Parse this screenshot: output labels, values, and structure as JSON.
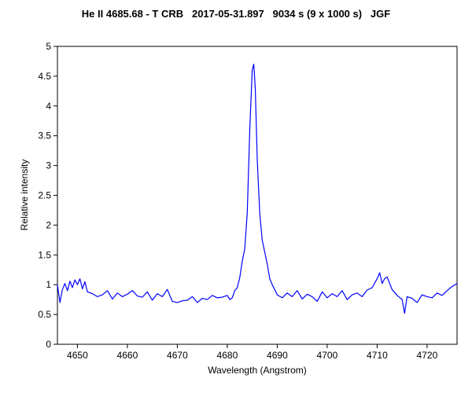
{
  "chart_data": {
    "type": "line",
    "title": "He II 4685.68 - T CRB   2017-05-31.897   9034 s (9 x 1000 s)   JGF",
    "xlabel": "Wavelength (Angstrom)",
    "ylabel": "Relative intensity",
    "xlim": [
      4646,
      4726
    ],
    "ylim": [
      0,
      5
    ],
    "xticks": [
      4650,
      4660,
      4670,
      4680,
      4690,
      4700,
      4710,
      4720
    ],
    "yticks": [
      0,
      0.5,
      1,
      1.5,
      2,
      2.5,
      3,
      3.5,
      4,
      4.5,
      5
    ],
    "ytick_labels": [
      "0",
      "0.5",
      "1",
      "1.5",
      "2",
      "2.5",
      "3",
      "3.5",
      "4",
      "4.5",
      "5"
    ],
    "grid": false,
    "line_color": "#0000ff",
    "series": [
      {
        "x": [
          4646,
          4646.5,
          4647,
          4647.5,
          4648,
          4648.5,
          4649,
          4649.5,
          4650,
          4650.5,
          4651,
          4651.5,
          4652,
          4653,
          4654,
          4655,
          4656,
          4657,
          4658,
          4659,
          4660,
          4661,
          4662,
          4663,
          4664,
          4665,
          4666,
          4667,
          4668,
          4669,
          4670,
          4671,
          4672,
          4673,
          4674,
          4675,
          4676,
          4677,
          4678,
          4679,
          4680,
          4680.5,
          4681,
          4681.5,
          4682,
          4682.5,
          4683,
          4683.5,
          4684,
          4684.5,
          4685,
          4685.3,
          4685.6,
          4686,
          4686.5,
          4687,
          4687.5,
          4688,
          4688.5,
          4689,
          4690,
          4691,
          4692,
          4693,
          4694,
          4695,
          4696,
          4697,
          4698,
          4699,
          4700,
          4701,
          4702,
          4703,
          4704,
          4705,
          4706,
          4707,
          4708,
          4709,
          4710,
          4710.5,
          4711,
          4711.5,
          4712,
          4713,
          4714,
          4715,
          4715.5,
          4716,
          4717,
          4718,
          4719,
          4720,
          4721,
          4722,
          4723,
          4724,
          4725,
          4726
        ],
        "y": [
          1.0,
          0.7,
          0.92,
          1.02,
          0.9,
          1.06,
          0.95,
          1.08,
          1.0,
          1.1,
          0.93,
          1.05,
          0.88,
          0.85,
          0.8,
          0.83,
          0.9,
          0.76,
          0.86,
          0.8,
          0.84,
          0.9,
          0.81,
          0.79,
          0.88,
          0.74,
          0.85,
          0.8,
          0.92,
          0.72,
          0.7,
          0.73,
          0.74,
          0.8,
          0.7,
          0.77,
          0.75,
          0.82,
          0.78,
          0.79,
          0.82,
          0.75,
          0.78,
          0.9,
          0.95,
          1.12,
          1.4,
          1.6,
          2.2,
          3.6,
          4.6,
          4.7,
          4.3,
          3.1,
          2.2,
          1.75,
          1.55,
          1.35,
          1.1,
          1.0,
          0.83,
          0.78,
          0.86,
          0.8,
          0.9,
          0.76,
          0.84,
          0.8,
          0.72,
          0.88,
          0.78,
          0.85,
          0.8,
          0.9,
          0.75,
          0.83,
          0.86,
          0.8,
          0.91,
          0.95,
          1.1,
          1.2,
          1.02,
          1.1,
          1.13,
          0.92,
          0.82,
          0.75,
          0.52,
          0.8,
          0.77,
          0.7,
          0.83,
          0.8,
          0.78,
          0.86,
          0.82,
          0.9,
          0.97,
          1.02
        ]
      }
    ]
  }
}
